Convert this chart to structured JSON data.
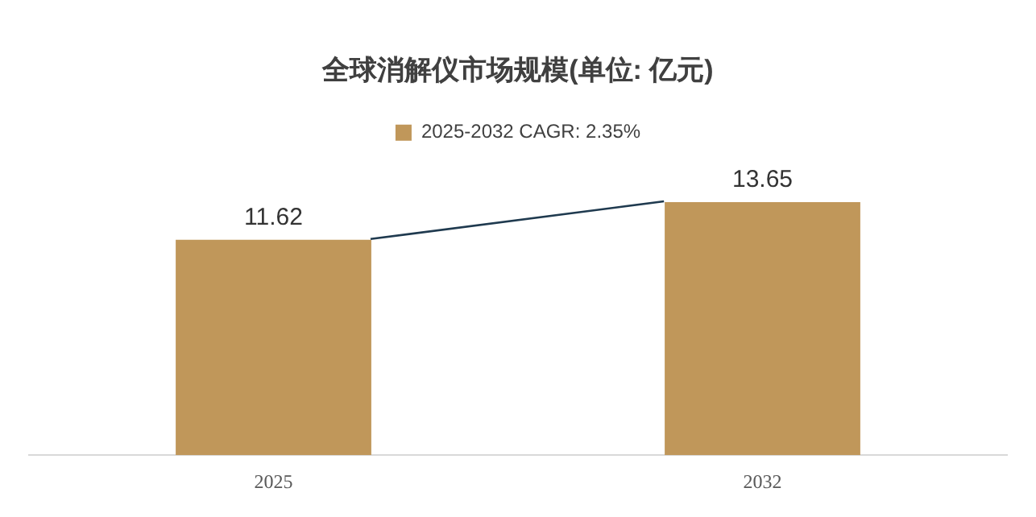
{
  "chart_data": {
    "type": "bar",
    "title": "全球消解仪市场规模(单位: 亿元)",
    "categories": [
      "2025",
      "2032"
    ],
    "series": [
      {
        "name": "2025-2032 CAGR: 2.35%",
        "color": "#c0975a",
        "values": [
          11.62,
          13.65
        ]
      }
    ],
    "data_labels": true,
    "legend": "top",
    "grid": false,
    "tick_labels": "x"
  }
}
